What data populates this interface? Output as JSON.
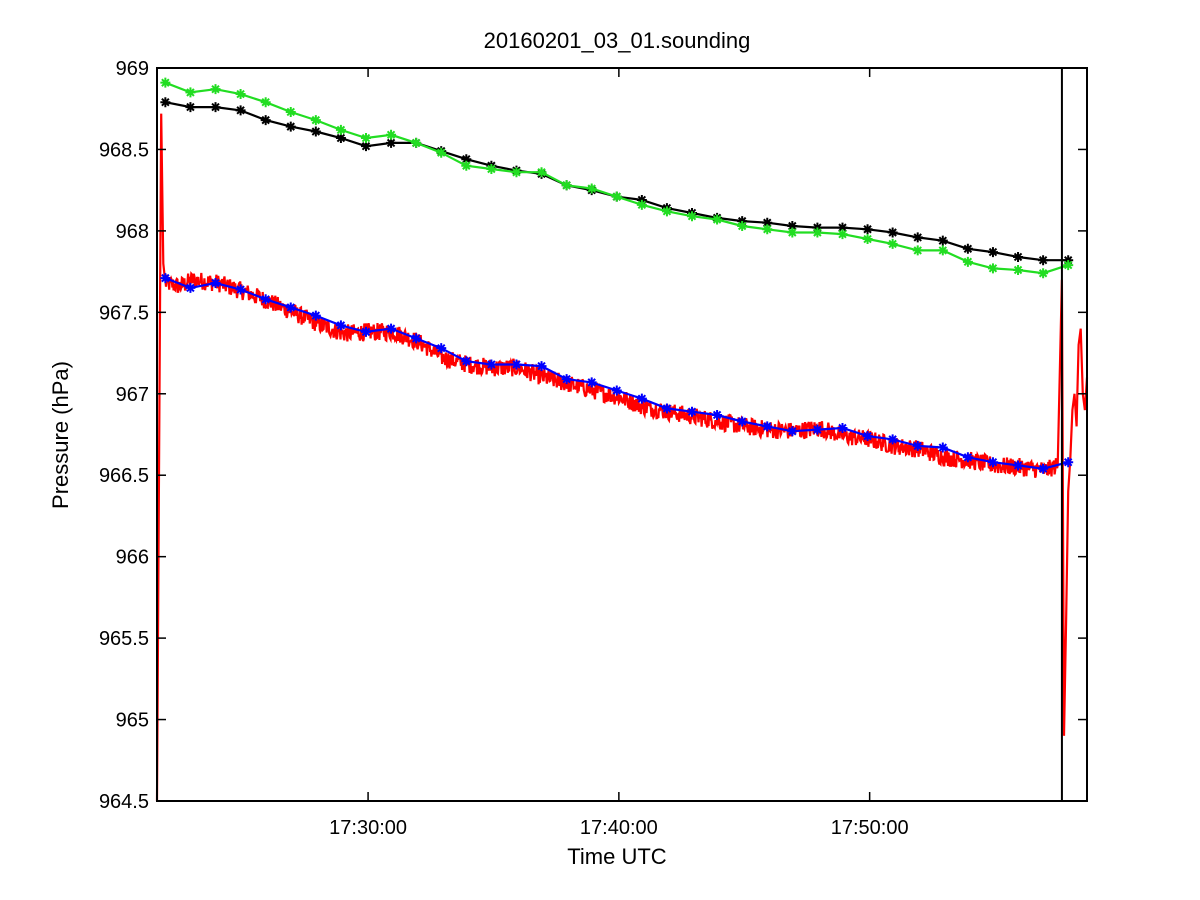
{
  "chart_data": {
    "type": "line",
    "title": "20160201_03_01.sounding",
    "xlabel": "Time UTC",
    "ylabel": "Pressure (hPa)",
    "xlim": [
      "17:21:35",
      "17:58:40"
    ],
    "ylim": [
      964.5,
      969
    ],
    "x_ticks": [
      "17:30:00",
      "17:40:00",
      "17:50:00"
    ],
    "y_ticks": [
      "964.5",
      "965",
      "965.5",
      "966",
      "966.5",
      "967",
      "967.5",
      "968",
      "968.5",
      "969"
    ],
    "grid": false,
    "legend": "none",
    "vertical_marker_time": "17:57:40",
    "series": [
      {
        "color": "#000000",
        "marker": "asterisk",
        "x": [
          "17:21:55",
          "17:22:55",
          "17:23:55",
          "17:24:55",
          "17:25:55",
          "17:26:55",
          "17:27:55",
          "17:28:55",
          "17:29:55",
          "17:30:55",
          "17:31:55",
          "17:32:55",
          "17:33:55",
          "17:34:55",
          "17:35:55",
          "17:36:55",
          "17:37:55",
          "17:38:55",
          "17:39:55",
          "17:40:55",
          "17:41:55",
          "17:42:55",
          "17:43:55",
          "17:44:55",
          "17:45:55",
          "17:46:55",
          "17:47:55",
          "17:48:55",
          "17:49:55",
          "17:50:55",
          "17:51:55",
          "17:52:55",
          "17:53:55",
          "17:54:55",
          "17:55:55",
          "17:56:55",
          "17:57:55"
        ],
        "values": [
          968.79,
          968.76,
          968.76,
          968.74,
          968.68,
          968.64,
          968.61,
          968.57,
          968.52,
          968.54,
          968.54,
          968.49,
          968.44,
          968.4,
          968.37,
          968.35,
          968.28,
          968.25,
          968.21,
          968.19,
          968.14,
          968.11,
          968.08,
          968.06,
          968.05,
          968.03,
          968.02,
          968.02,
          968.01,
          967.99,
          967.96,
          967.94,
          967.89,
          967.87,
          967.84,
          967.82,
          967.82
        ]
      },
      {
        "color": "#22dd22",
        "marker": "asterisk",
        "x": [
          "17:21:55",
          "17:22:55",
          "17:23:55",
          "17:24:55",
          "17:25:55",
          "17:26:55",
          "17:27:55",
          "17:28:55",
          "17:29:55",
          "17:30:55",
          "17:31:55",
          "17:32:55",
          "17:33:55",
          "17:34:55",
          "17:35:55",
          "17:36:55",
          "17:37:55",
          "17:38:55",
          "17:39:55",
          "17:40:55",
          "17:41:55",
          "17:42:55",
          "17:43:55",
          "17:44:55",
          "17:45:55",
          "17:46:55",
          "17:47:55",
          "17:48:55",
          "17:49:55",
          "17:50:55",
          "17:51:55",
          "17:52:55",
          "17:53:55",
          "17:54:55",
          "17:55:55",
          "17:56:55",
          "17:57:55"
        ],
        "values": [
          968.91,
          968.85,
          968.87,
          968.84,
          968.79,
          968.73,
          968.68,
          968.62,
          968.57,
          968.59,
          968.54,
          968.48,
          968.4,
          968.38,
          968.36,
          968.36,
          968.28,
          968.26,
          968.21,
          968.16,
          968.12,
          968.09,
          968.07,
          968.03,
          968.01,
          967.99,
          967.99,
          967.98,
          967.95,
          967.92,
          967.88,
          967.88,
          967.81,
          967.77,
          967.76,
          967.74,
          967.79
        ]
      },
      {
        "color": "#ff0000",
        "marker": "none",
        "note": "high-frequency trace",
        "x": [
          "17:21:35",
          "17:21:45",
          "17:21:50",
          "17:21:55",
          "17:22:30",
          "17:23:00",
          "17:23:30",
          "17:24:00",
          "17:25:00",
          "17:26:00",
          "17:27:00",
          "17:28:00",
          "17:29:00",
          "17:30:00",
          "17:31:00",
          "17:32:00",
          "17:33:00",
          "17:34:00",
          "17:35:00",
          "17:36:00",
          "17:37:00",
          "17:38:00",
          "17:39:00",
          "17:40:00",
          "17:41:00",
          "17:42:00",
          "17:43:00",
          "17:44:00",
          "17:45:00",
          "17:46:00",
          "17:47:00",
          "17:48:00",
          "17:49:00",
          "17:50:00",
          "17:51:00",
          "17:52:00",
          "17:53:00",
          "17:54:00",
          "17:55:00",
          "17:56:00",
          "17:57:00",
          "17:57:30",
          "17:57:40",
          "17:57:45",
          "17:57:50",
          "17:57:55",
          "17:58:00",
          "17:58:05",
          "17:58:10",
          "17:58:15",
          "17:58:20",
          "17:58:25",
          "17:58:30",
          "17:58:35",
          "17:58:40"
        ],
        "values": [
          964.5,
          968.72,
          967.8,
          967.68,
          967.66,
          967.7,
          967.69,
          967.68,
          967.63,
          967.57,
          967.5,
          967.43,
          967.37,
          967.38,
          967.38,
          967.32,
          967.22,
          967.18,
          967.16,
          967.16,
          967.1,
          967.06,
          967.02,
          966.98,
          966.92,
          966.89,
          966.86,
          966.83,
          966.8,
          966.78,
          966.77,
          966.79,
          966.74,
          966.72,
          966.68,
          966.66,
          966.61,
          966.59,
          966.56,
          966.55,
          966.53,
          966.56,
          967.7,
          964.9,
          965.6,
          966.4,
          966.6,
          966.9,
          967.0,
          966.8,
          967.3,
          967.4,
          967.0,
          966.9,
          967.1
        ]
      },
      {
        "color": "#0000ff",
        "marker": "asterisk",
        "x": [
          "17:21:55",
          "17:22:55",
          "17:23:55",
          "17:24:55",
          "17:25:55",
          "17:26:55",
          "17:27:55",
          "17:28:55",
          "17:29:55",
          "17:30:55",
          "17:31:55",
          "17:32:55",
          "17:33:55",
          "17:34:55",
          "17:35:55",
          "17:36:55",
          "17:37:55",
          "17:38:55",
          "17:39:55",
          "17:40:55",
          "17:41:55",
          "17:42:55",
          "17:43:55",
          "17:44:55",
          "17:45:55",
          "17:46:55",
          "17:47:55",
          "17:48:55",
          "17:49:55",
          "17:50:55",
          "17:51:55",
          "17:52:55",
          "17:53:55",
          "17:54:55",
          "17:55:55",
          "17:56:55",
          "17:57:55"
        ],
        "values": [
          967.71,
          967.65,
          967.68,
          967.64,
          967.58,
          967.53,
          967.48,
          967.42,
          967.38,
          967.4,
          967.34,
          967.28,
          967.2,
          967.18,
          967.18,
          967.17,
          967.09,
          967.07,
          967.02,
          966.97,
          966.91,
          966.89,
          966.87,
          966.83,
          966.8,
          966.77,
          966.78,
          966.79,
          966.74,
          966.72,
          966.68,
          966.67,
          966.61,
          966.58,
          966.56,
          966.54,
          966.58
        ]
      }
    ]
  }
}
